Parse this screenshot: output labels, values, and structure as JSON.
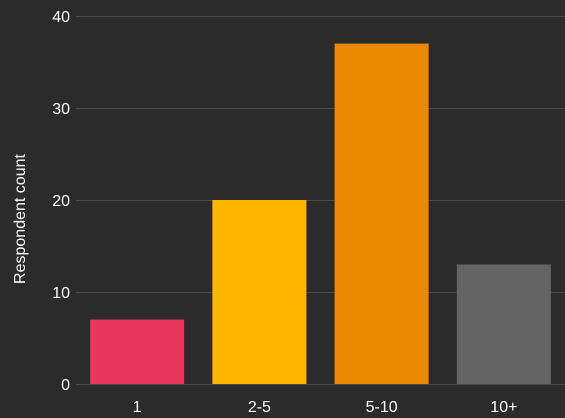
{
  "chart_data": {
    "type": "bar",
    "title": "",
    "xlabel": "",
    "ylabel": "Respondent count",
    "categories": [
      "1",
      "2-5",
      "5-10",
      "10+"
    ],
    "values": [
      7,
      20,
      37,
      13
    ],
    "colors": [
      "#e8365d",
      "#ffb400",
      "#eb8a00",
      "#646464"
    ],
    "ylim": [
      0,
      40
    ],
    "yticks": [
      0,
      10,
      20,
      30,
      40
    ],
    "grid": true,
    "legend": "none",
    "background": "#2b2b2b"
  }
}
